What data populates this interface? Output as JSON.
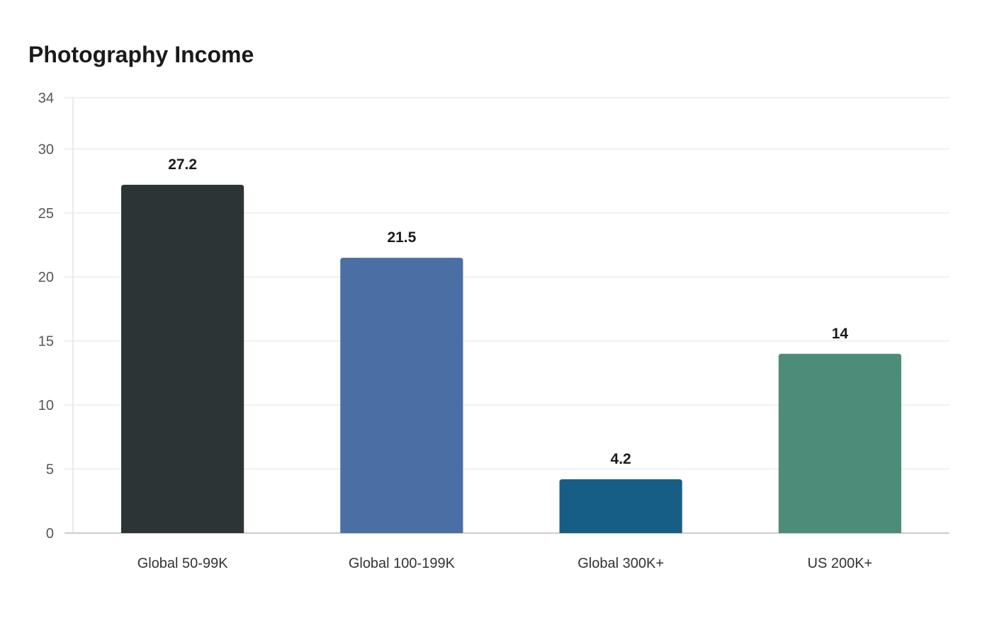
{
  "chart_data": {
    "type": "bar",
    "title": "Photography Income",
    "xlabel": "",
    "ylabel": "",
    "categories": [
      "Global 50-99K",
      "Global 100-199K",
      "Global 300K+",
      "US 200K+"
    ],
    "values": [
      27.2,
      21.5,
      4.2,
      14
    ],
    "value_labels": [
      "27.2",
      "21.5",
      "4.2",
      "14"
    ],
    "colors": [
      "#2d3436",
      "#4a6fa5",
      "#175e85",
      "#4e8c7a"
    ],
    "ylim": [
      0,
      34
    ],
    "yticks": [
      0,
      5,
      10,
      15,
      20,
      25,
      30,
      34
    ],
    "grid": true,
    "legend": "none"
  }
}
